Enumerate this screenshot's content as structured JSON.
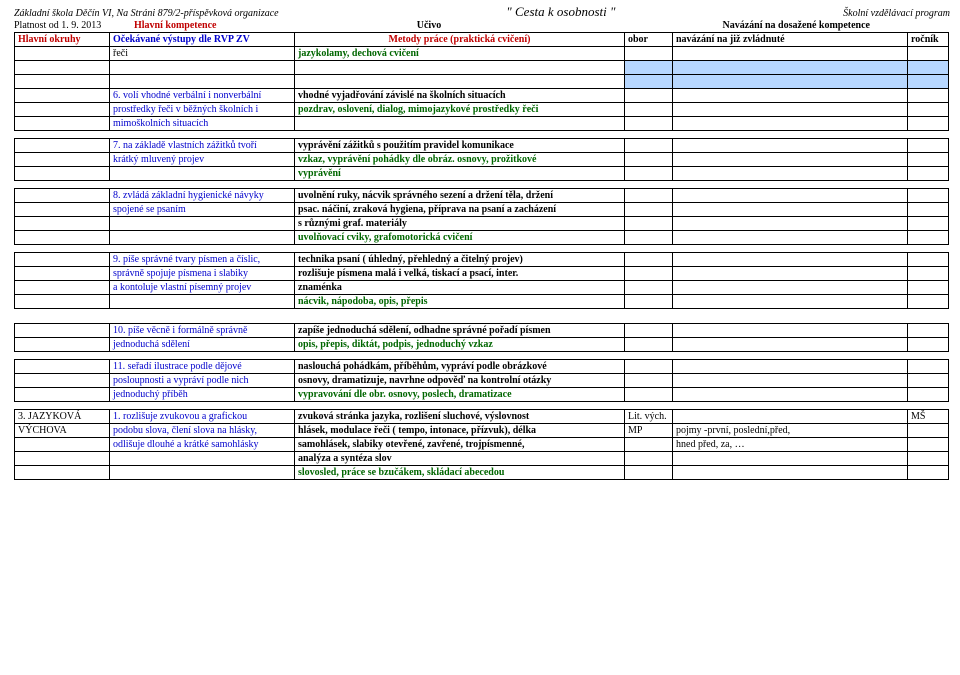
{
  "header": {
    "school": "Základní škola Děčín VI, Na Stráni 879/2-příspěvková organizace",
    "motto": "\" Cesta k osobnosti \"",
    "program": "Školní vzdělávací program",
    "validFrom": "Platnost od 1. 9. 2013",
    "col_comp": "Hlavní kompetence",
    "col_ucivo": "Učivo",
    "col_navaz": "Navázání na dosažené kompetence"
  },
  "tableHeader": {
    "c1": "Hlavní okruhy",
    "c2": "Očekávané výstupy dle RVP ZV",
    "c3": "Metody práce (praktická cvičení)",
    "c4": "obor",
    "c5": "navázání na již zvládnuté",
    "c6": "ročník"
  },
  "rows": [
    {
      "b": "řeči",
      "c": "jazykolamy, dechová cvičení",
      "cClass": "green bold"
    },
    {
      "blankBlue": true
    },
    {
      "blankBlue": true
    },
    {
      "b": "6. volí vhodné verbální i nonverbální",
      "c": "vhodné vyjadřování závislé na školních situacích",
      "bClass": "blue",
      "cClass": "black bold"
    },
    {
      "b": "prostředky řeči v běžných školních i",
      "c": "pozdrav, oslovení, dialog, mimojazykové prostředky řeči",
      "bClass": "blue",
      "cClass": "green bold"
    },
    {
      "b": "mimoškolních situacích",
      "bClass": "blue"
    },
    {
      "blank": true
    },
    {
      "b": "7. na základě vlastních zážitků tvoří",
      "c": "vyprávění zážitků s použitím pravidel komunikace",
      "bClass": "blue",
      "cClass": "black bold"
    },
    {
      "b": "krátký mluvený projev",
      "c": "vzkaz, vyprávění pohádky dle obráz. osnovy, prožitkové",
      "bClass": "blue",
      "cClass": "green bold"
    },
    {
      "c": "vyprávění",
      "cClass": "green bold"
    },
    {
      "blank": true
    },
    {
      "b": "8. zvládá základní hygienické návyky",
      "c": "uvolnění ruky, nácvik správného sezení a držení těla, držení",
      "bClass": "blue",
      "cClass": "black bold"
    },
    {
      "b": "spojené se psaním",
      "c": "psac. náčiní, zraková hygiena, příprava na psaní a zacházení",
      "bClass": "blue",
      "cClass": "black bold"
    },
    {
      "c": "s různými graf. materiály",
      "cClass": "black bold"
    },
    {
      "c": "uvolňovací cviky, grafomotorická cvičení",
      "cClass": "green bold"
    },
    {
      "blank": true
    },
    {
      "b": "9. píše správné tvary písmen a číslic,",
      "c": "technika psaní ( úhledný, přehledný a čitelný projev)",
      "bClass": "blue",
      "cClass": "black bold"
    },
    {
      "b": "správně spojuje písmena i slabiky",
      "c": "rozlišuje písmena malá i velká, tiskací a psací, inter.",
      "bClass": "blue",
      "cClass": "black bold"
    },
    {
      "b": "a kontoluje vlastní písemný projev",
      "c": "znaménka",
      "bClass": "blue",
      "cClass": "black bold"
    },
    {
      "c": "nácvik, nápodoba, opis, přepis",
      "cClass": "green bold"
    },
    {
      "blank": true
    },
    {
      "blank": true
    },
    {
      "b": "10. píše věcně i formálně správně",
      "c": "zapíše jednoduchá sdělení, odhadne správné pořadí písmen",
      "bClass": "blue",
      "cClass": "black bold"
    },
    {
      "b": "jednoduchá sdělení",
      "c": "opis, přepis, diktát, podpis, jednoduchý vzkaz",
      "bClass": "blue",
      "cClass": "green bold"
    },
    {
      "blank": true
    },
    {
      "b": "11. seřadí ilustrace podle dějové",
      "c": "naslouchá pohádkám, příběhům, vypráví podle obrázkové",
      "bClass": "blue",
      "cClass": "black bold"
    },
    {
      "b": "posloupnosti a vypráví podle nich",
      "c": "osnovy, dramatizuje, navrhne odpověď na kontrolní otázky",
      "bClass": "blue",
      "cClass": "black bold"
    },
    {
      "b": "jednoduchý příběh",
      "c": "vypravování dle obr. osnovy, poslech, dramatizace",
      "bClass": "blue",
      "cClass": "green bold"
    },
    {
      "blank": true
    },
    {
      "a": "3. JAZYKOVÁ",
      "b": "1. rozlišuje zvukovou a grafickou",
      "c": "zvuková stránka jazyka, rozlišení sluchové, výslovnost",
      "d": "Lit. vých.",
      "f": "MŠ",
      "aClass": "black",
      "bClass": "blue",
      "cClass": "black bold",
      "dClass": "black"
    },
    {
      "a": "VÝCHOVA",
      "b": "podobu slova, člení slova na hlásky,",
      "c": "hlásek, modulace řeči ( tempo, intonace, přízvuk), délka",
      "d": "MP",
      "e": "pojmy -první, poslední,před,",
      "aClass": "black",
      "bClass": "blue",
      "cClass": "black bold"
    },
    {
      "b": "odlišuje dlouhé a krátké samohlásky",
      "c": "samohlásek, slabiky otevřené, zavřené, trojpísmenné,",
      "e": "hned před, za, …",
      "bClass": "blue",
      "cClass": "black bold"
    },
    {
      "c": "analýza a syntéza slov",
      "cClass": "black bold"
    },
    {
      "c": "slovosled, práce se bzučákem, skládací abecedou",
      "cClass": "green bold"
    }
  ]
}
